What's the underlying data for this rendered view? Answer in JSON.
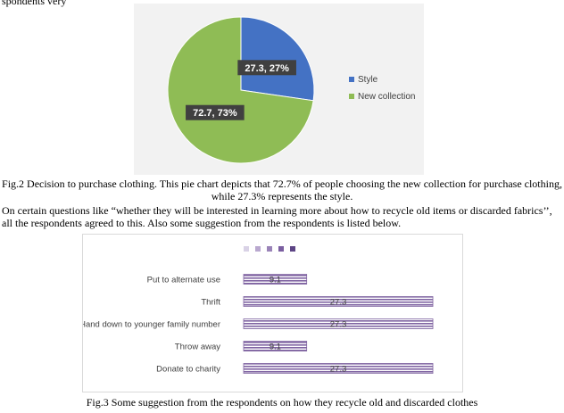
{
  "page": {
    "fragment": "spondents very",
    "fig2_caption": "Fig.2 Decision to purchase clothing. This pie chart depicts that 72.7% of people choosing the new collection for purchase clothing, while 27.3% represents the style.",
    "paragraph": "On certain questions like “whether they will be interested in learning more about how to recycle old items or discarded fabrics’’, all the respondents agreed to this. Also some suggestion from the respondents is listed below.",
    "fig3_caption": "Fig.3 Some suggestion from the respondents on how they recycle old and discarded clothes"
  },
  "chart_data": [
    {
      "type": "pie",
      "slices": [
        {
          "name": "Style",
          "value": 27.3,
          "label": "27.3, 27%",
          "color": "#4472c4"
        },
        {
          "name": "New collection",
          "value": 72.7,
          "label": "72.7, 73%",
          "color": "#8fbc55"
        }
      ],
      "legend_position": "right"
    },
    {
      "type": "bar",
      "orientation": "horizontal",
      "categories": [
        "Put to alternate use",
        "Thrift",
        "Hand down to younger family number",
        "Throw away",
        "Donate to charity"
      ],
      "values": [
        9.1,
        27.3,
        27.3,
        9.1,
        27.3
      ],
      "data_labels": [
        "9.1",
        "27.3",
        "27.3",
        "9.1",
        "27.3"
      ],
      "xlim": [
        0,
        30
      ],
      "grid": false,
      "bar_color": "#8064a2"
    }
  ]
}
